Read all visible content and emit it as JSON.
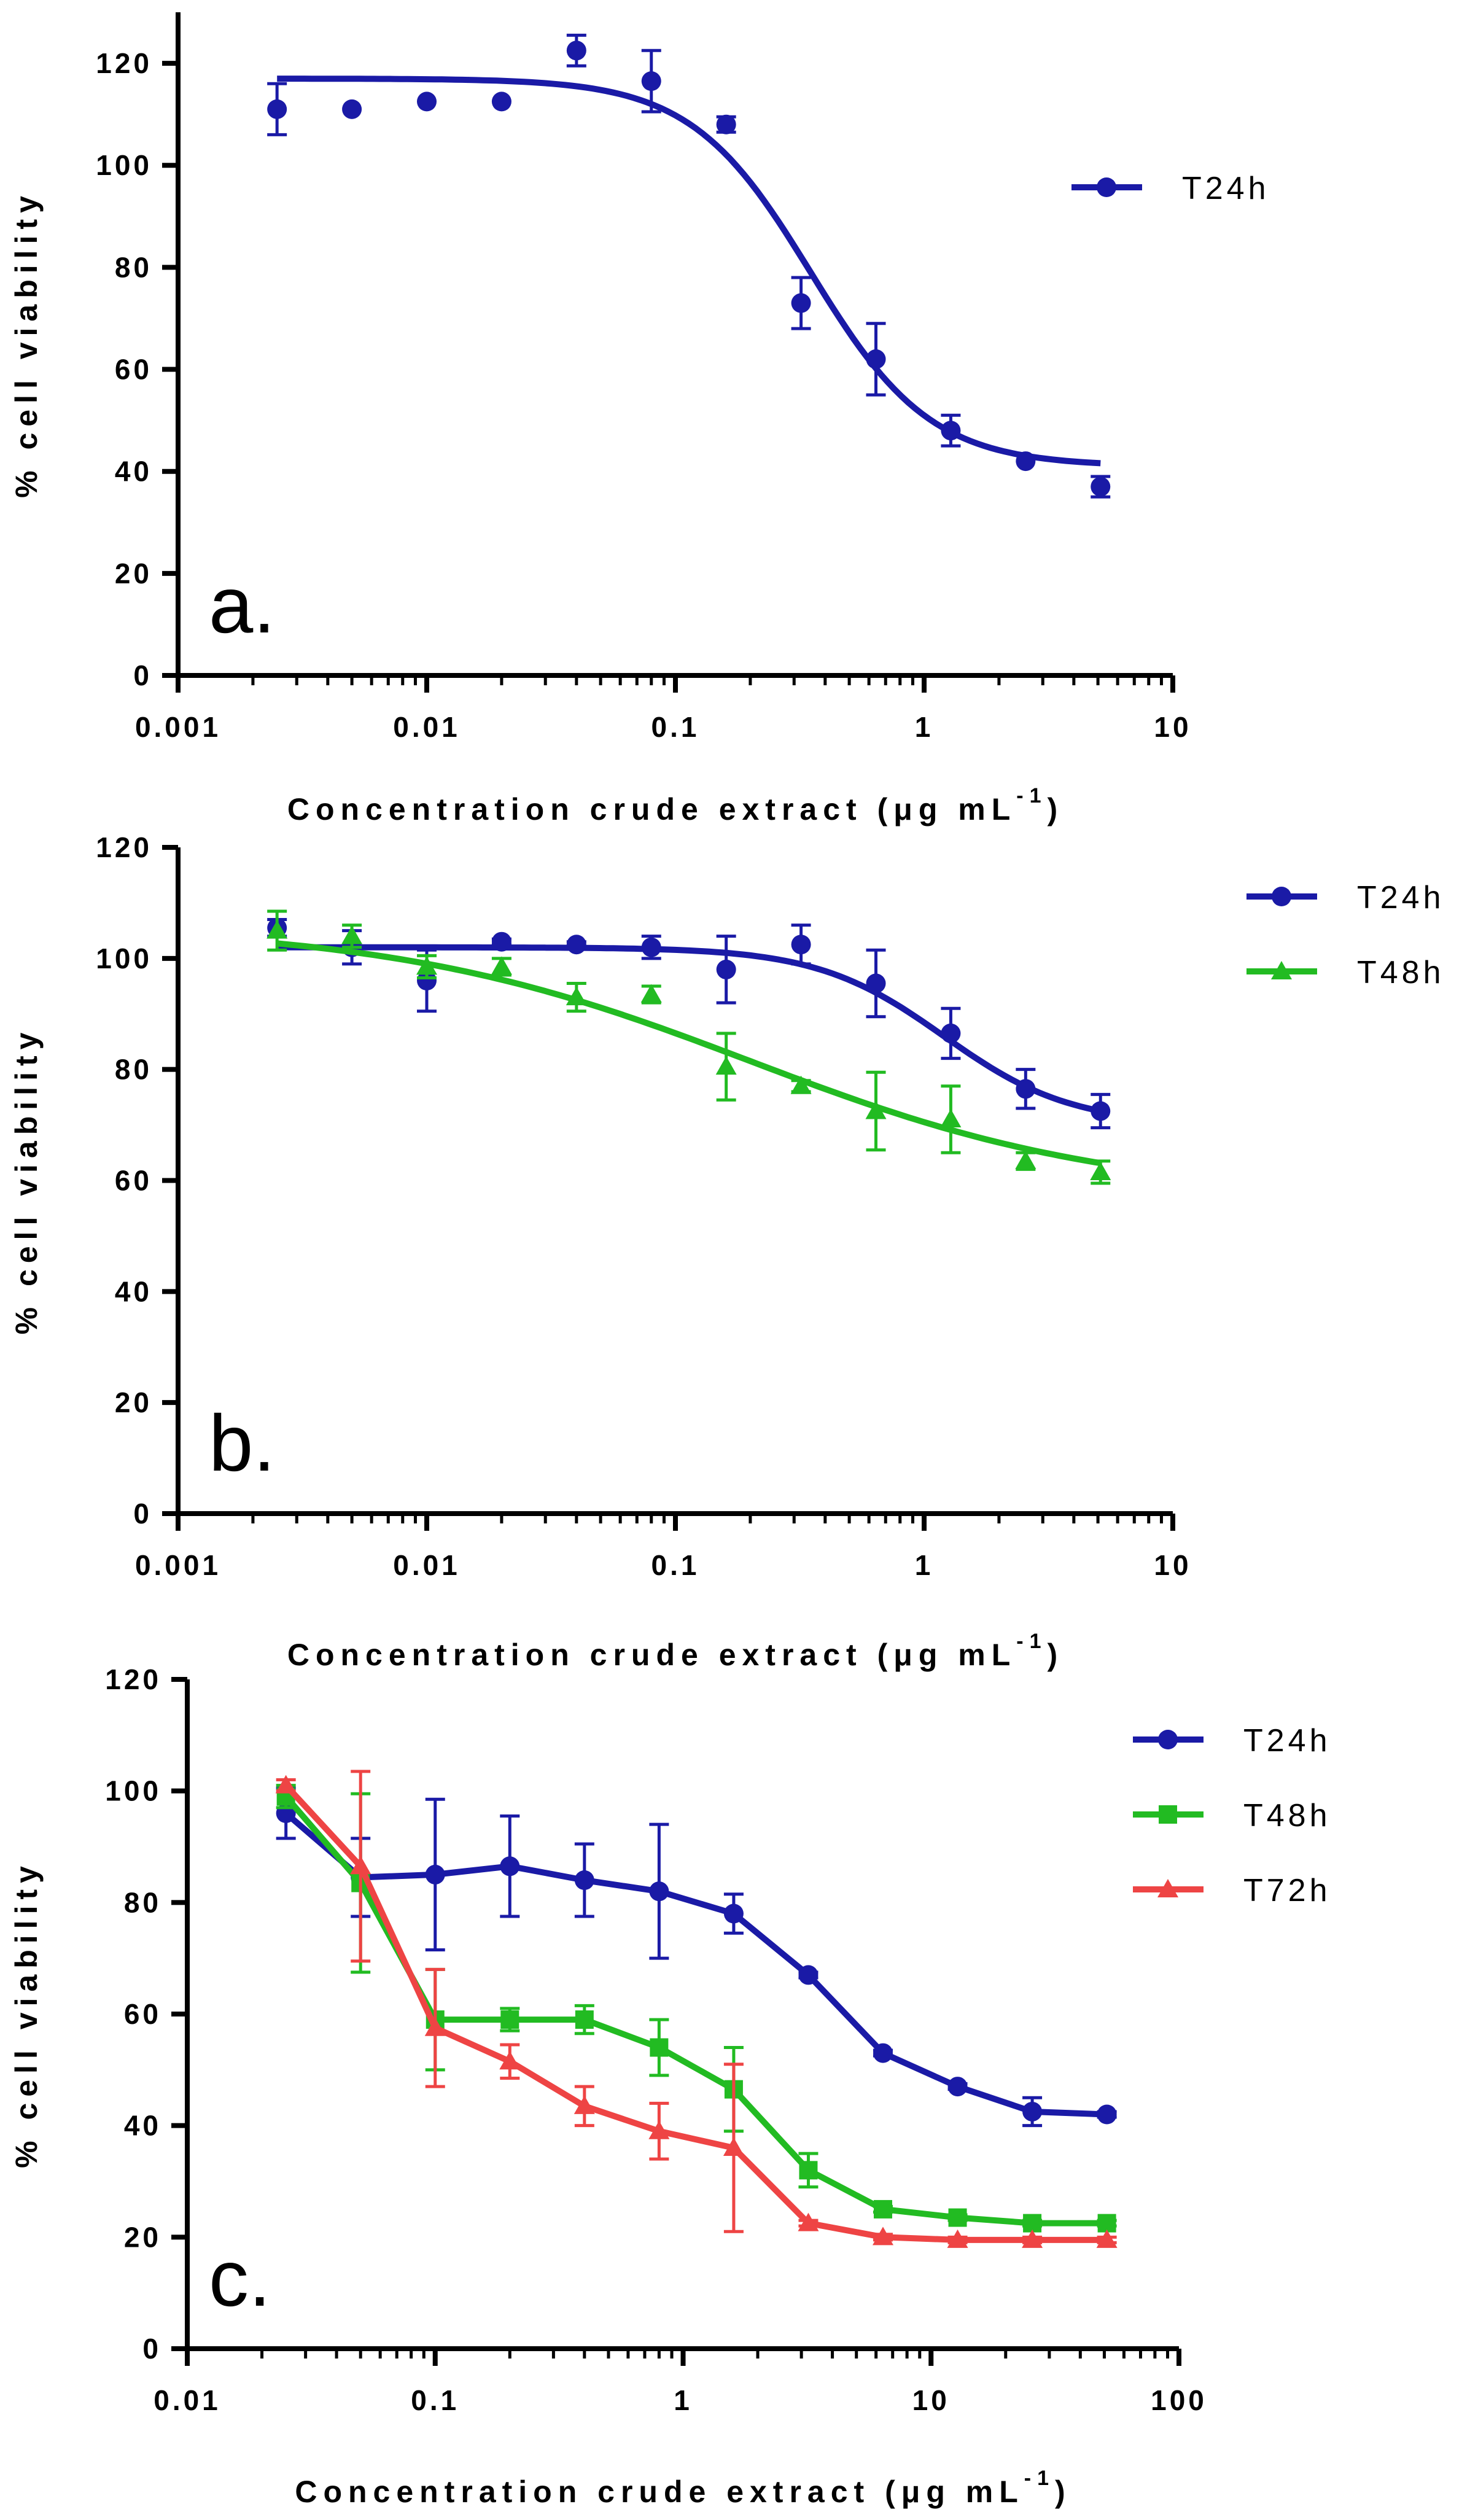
{
  "chart_data": [
    {
      "panel": "a.",
      "type": "scatter",
      "title": "",
      "xlabel": "Concentration crude extract (μg mL",
      "xlabel_sup": "-1",
      "xlabel_close": ")",
      "ylabel": "% cell viability",
      "xscale": "log",
      "xlim": [
        0.001,
        10
      ],
      "ylim": [
        0,
        130
      ],
      "xticks": [
        0.001,
        0.01,
        0.1,
        1,
        10
      ],
      "xtick_labels": [
        "0.001",
        "0.01",
        "0.1",
        "1",
        "10"
      ],
      "yticks": [
        0,
        20,
        40,
        60,
        80,
        100,
        120
      ],
      "ytick_labels": [
        "0",
        "20",
        "40",
        "60",
        "80",
        "100",
        "120"
      ],
      "legend_position": "top-right",
      "series": [
        {
          "name": "T24h",
          "color": "#1a1aa6",
          "marker": "circle",
          "fit": "sigmoid",
          "fit_params": {
            "top": 117,
            "bottom": 41,
            "ec50": 0.35,
            "hill": 1.8
          },
          "x": [
            0.0025,
            0.005,
            0.01,
            0.02,
            0.04,
            0.08,
            0.16,
            0.32,
            0.64,
            1.28,
            2.56,
            5.12
          ],
          "y": [
            111,
            111,
            112.5,
            112.5,
            122.5,
            116.5,
            108,
            73,
            62,
            48,
            42,
            37
          ],
          "err": [
            5,
            0,
            0,
            0,
            3,
            6,
            1.5,
            5,
            7,
            3,
            0,
            2
          ]
        }
      ]
    },
    {
      "panel": "b.",
      "type": "scatter",
      "title": "",
      "xlabel": "Concentration crude extract (μg mL",
      "xlabel_sup": "-1",
      "xlabel_close": ")",
      "ylabel": "% cell viability",
      "xscale": "log",
      "xlim": [
        0.001,
        10
      ],
      "ylim": [
        0,
        120
      ],
      "xticks": [
        0.001,
        0.01,
        0.1,
        1,
        10
      ],
      "xtick_labels": [
        "0.001",
        "0.01",
        "0.1",
        "1",
        "10"
      ],
      "yticks": [
        0,
        20,
        40,
        60,
        80,
        100,
        120
      ],
      "ytick_labels": [
        "0",
        "20",
        "40",
        "60",
        "80",
        "100",
        "120"
      ],
      "legend_position": "top-right",
      "series": [
        {
          "name": "T24h",
          "color": "#1a1aa6",
          "marker": "circle",
          "fit": "sigmoid",
          "fit_params": {
            "top": 102,
            "bottom": 70,
            "ec50": 1.2,
            "hill": 1.7
          },
          "x": [
            0.0025,
            0.005,
            0.01,
            0.02,
            0.04,
            0.08,
            0.16,
            0.32,
            0.64,
            1.28,
            2.56,
            5.12
          ],
          "y": [
            105.5,
            102,
            96,
            103,
            102.5,
            102,
            98,
            102.5,
            95.5,
            86.5,
            76.5,
            72.5
          ],
          "err": [
            1.5,
            3,
            5.5,
            0.5,
            0.5,
            2,
            6,
            3.5,
            6,
            4.5,
            3.5,
            3
          ]
        },
        {
          "name": "T48h",
          "color": "#22bb22",
          "marker": "triangle",
          "fit": "sigmoid",
          "fit_params": {
            "top": 106,
            "bottom": 57,
            "ec50": 0.2,
            "hill": 0.6
          },
          "x": [
            0.0025,
            0.005,
            0.01,
            0.02,
            0.04,
            0.08,
            0.16,
            0.32,
            0.64,
            1.28,
            2.56,
            5.12
          ],
          "y": [
            105,
            104,
            98.5,
            98.5,
            93,
            93.5,
            80.5,
            77,
            72.5,
            71,
            63.5,
            61.5
          ],
          "err": [
            3.5,
            2,
            2,
            1.5,
            2.5,
            1.5,
            6,
            1,
            7,
            6,
            1.5,
            2
          ]
        }
      ]
    },
    {
      "panel": "c.",
      "type": "line",
      "title": "",
      "xlabel": "Concentration crude extract (μg mL",
      "xlabel_sup": "-1",
      "xlabel_close": ")",
      "ylabel": "% cell viability",
      "xscale": "log",
      "xlim": [
        0.01,
        100
      ],
      "ylim": [
        0,
        120
      ],
      "xticks": [
        0.01,
        0.1,
        1,
        10,
        100
      ],
      "xtick_labels": [
        "0.01",
        "0.1",
        "1",
        "10",
        "100"
      ],
      "yticks": [
        0,
        20,
        40,
        60,
        80,
        100,
        120
      ],
      "ytick_labels": [
        "0",
        "20",
        "40",
        "60",
        "80",
        "100",
        "120"
      ],
      "legend_position": "top-right",
      "series": [
        {
          "name": "T24h",
          "color": "#1a1aa6",
          "marker": "circle",
          "x": [
            0.025,
            0.05,
            0.1,
            0.2,
            0.4,
            0.8,
            1.6,
            3.2,
            6.4,
            12.8,
            25.6,
            51.2
          ],
          "y": [
            96,
            84.5,
            85,
            86.5,
            84,
            82,
            78,
            67,
            53,
            47,
            42.5,
            42
          ],
          "err": [
            4.5,
            7,
            13.5,
            9,
            6.5,
            12,
            3.5,
            0.5,
            0.5,
            0.5,
            2.5,
            0.5
          ]
        },
        {
          "name": "T48h",
          "color": "#22bb22",
          "marker": "square",
          "x": [
            0.025,
            0.05,
            0.1,
            0.2,
            0.4,
            0.8,
            1.6,
            3.2,
            6.4,
            12.8,
            25.6,
            51.2
          ],
          "y": [
            99,
            83.5,
            59,
            59,
            59,
            54,
            46.5,
            32,
            25,
            23.5,
            22.5,
            22.5
          ],
          "err": [
            2,
            16,
            9,
            2,
            2.5,
            5,
            7.5,
            3,
            0.5,
            0.5,
            0.5,
            0.5
          ]
        },
        {
          "name": "T72h",
          "color": "#ee4444",
          "marker": "triangle",
          "x": [
            0.025,
            0.05,
            0.1,
            0.2,
            0.4,
            0.8,
            1.6,
            3.2,
            6.4,
            12.8,
            25.6,
            51.2
          ],
          "y": [
            101,
            86.5,
            57.5,
            51.5,
            43.5,
            39,
            36,
            22.5,
            20,
            19.5,
            19.5,
            19.5
          ],
          "err": [
            1,
            17,
            10.5,
            3,
            3.5,
            5,
            15,
            0.5,
            0.5,
            0.5,
            0.5,
            0.5
          ]
        }
      ]
    }
  ]
}
